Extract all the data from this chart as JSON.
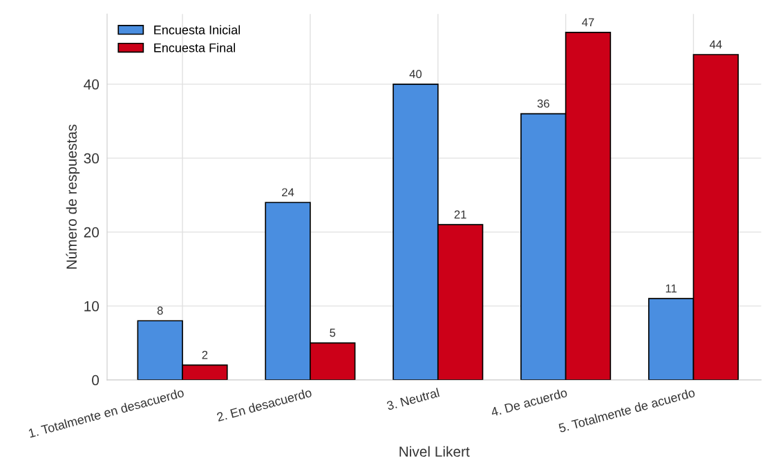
{
  "chart_data": {
    "type": "bar",
    "xlabel": "Nivel Likert",
    "ylabel": "Número de respuestas",
    "categories": [
      "1. Totalmente en desacuerdo",
      "2. En desacuerdo",
      "3. Neutral",
      "4. De acuerdo",
      "5. Totalmente de acuerdo"
    ],
    "series": [
      {
        "name": "Encuesta Inicial",
        "color": "#4a8ee0",
        "values": [
          8,
          24,
          40,
          36,
          11
        ]
      },
      {
        "name": "Encuesta Final",
        "color": "#cc0018",
        "values": [
          2,
          5,
          21,
          47,
          44
        ]
      }
    ],
    "ylim": [
      0,
      49.5
    ],
    "yticks": [
      0,
      10,
      20,
      30,
      40
    ],
    "grid": true,
    "legend": "top left",
    "data_labels": true
  }
}
